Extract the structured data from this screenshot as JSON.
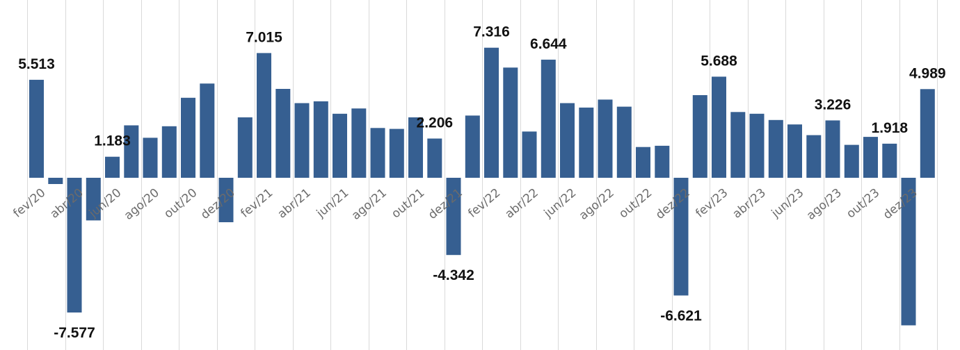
{
  "chart_data": {
    "type": "bar",
    "title": "",
    "xlabel": "",
    "ylabel": "",
    "grid": "vertical",
    "legend": "none",
    "colors": {
      "bar": "#365f91",
      "grid": "#d9d9d9",
      "tick_label": "#6b6b6b",
      "data_label": "#111111"
    },
    "ylim": [
      -8.5,
      10.0
    ],
    "categories": [
      "fev/20",
      "mar/20",
      "abr/20",
      "mai/20",
      "jun/20",
      "jul/20",
      "ago/20",
      "set/20",
      "out/20",
      "nov/20",
      "dez/20",
      "jan/21",
      "fev/21",
      "mar/21",
      "abr/21",
      "mai/21",
      "jun/21",
      "jul/21",
      "ago/21",
      "set/21",
      "out/21",
      "nov/21",
      "dez/21",
      "jan/22",
      "fev/22",
      "mar/22",
      "abr/22",
      "mai/22",
      "jun/22",
      "jul/22",
      "ago/22",
      "set/22",
      "out/22",
      "nov/22",
      "dez/22",
      "jan/23",
      "fev/23",
      "mar/23",
      "abr/23",
      "mai/23",
      "jun/23",
      "jul/23",
      "ago/23",
      "set/23",
      "out/23",
      "nov/23",
      "dez/23",
      "jan/24"
    ],
    "tick_labels": [
      "fev/20",
      "abr/20",
      "jun/20",
      "ago/20",
      "out/20",
      "dez/20",
      "fev/21",
      "abr/21",
      "jun/21",
      "ago/21",
      "out/21",
      "dez/21",
      "fev/22",
      "abr/22",
      "jun/22",
      "ago/22",
      "out/22",
      "dez/22",
      "fev/23",
      "abr/23",
      "jun/23",
      "ago/23",
      "out/23",
      "dez/23"
    ],
    "values": [
      5.513,
      -0.35,
      -7.577,
      -2.4,
      1.183,
      2.95,
      2.25,
      2.9,
      4.5,
      5.3,
      -2.5,
      3.4,
      7.015,
      5.0,
      4.2,
      4.3,
      3.6,
      3.9,
      2.8,
      2.75,
      3.4,
      2.206,
      -4.342,
      3.5,
      7.316,
      6.2,
      2.6,
      6.644,
      4.2,
      3.95,
      4.4,
      4.0,
      1.73,
      1.8,
      -6.621,
      4.65,
      5.688,
      3.7,
      3.6,
      3.25,
      3.0,
      2.4,
      3.226,
      1.85,
      2.3,
      1.918,
      -8.3,
      4.989
    ],
    "data_labels": [
      {
        "index": 0,
        "text": "5.513"
      },
      {
        "index": 2,
        "text": "-7.577"
      },
      {
        "index": 4,
        "text": "1.183"
      },
      {
        "index": 12,
        "text": "7.015"
      },
      {
        "index": 21,
        "text": "2.206"
      },
      {
        "index": 22,
        "text": "-4.342"
      },
      {
        "index": 24,
        "text": "7.316"
      },
      {
        "index": 27,
        "text": "6.644"
      },
      {
        "index": 34,
        "text": "-6.621"
      },
      {
        "index": 36,
        "text": "5.688"
      },
      {
        "index": 42,
        "text": "3.226"
      },
      {
        "index": 45,
        "text": "1.918"
      },
      {
        "index": 47,
        "text": "4.989"
      }
    ]
  }
}
